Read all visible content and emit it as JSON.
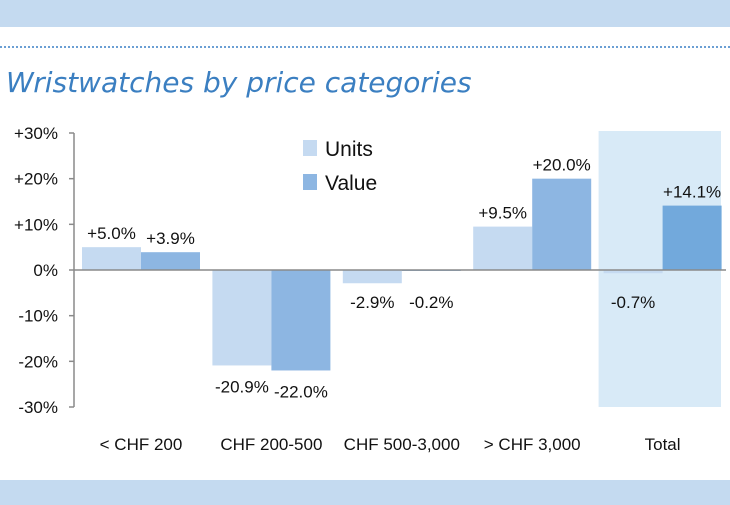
{
  "title": "Wristwatches by price categories",
  "colors": {
    "band": "#c4daf0",
    "title": "#3b7fc1",
    "units": "#c5daf1",
    "value": "#8db6e2",
    "value_total": "#72a9dc",
    "total_highlight": "#d8eaf7"
  },
  "chart_data": {
    "type": "bar",
    "categories": [
      "< CHF 200",
      "CHF 200-500",
      "CHF 500-3,000",
      "> CHF 3,000",
      "Total"
    ],
    "series": [
      {
        "name": "Units",
        "values": [
          5.0,
          -20.9,
          -2.9,
          9.5,
          -0.7
        ],
        "labels": [
          "+5.0%",
          "-20.9%",
          "-2.9%",
          "+9.5%",
          "-0.7%"
        ]
      },
      {
        "name": "Value",
        "values": [
          3.9,
          -22.0,
          -0.2,
          20.0,
          14.1
        ],
        "labels": [
          "+3.9%",
          "-22.0%",
          "-0.2%",
          "+20.0%",
          "+14.1%"
        ]
      }
    ],
    "ylim": [
      -30,
      30
    ],
    "yticks": [
      30,
      20,
      10,
      0,
      -10,
      -20,
      -30
    ],
    "ytick_labels": [
      "+30%",
      "+20%",
      "+10%",
      "0%",
      "-10%",
      "-20%",
      "-30%"
    ],
    "legend_position": "top-center",
    "highlighted_category": "Total",
    "grid": false
  }
}
